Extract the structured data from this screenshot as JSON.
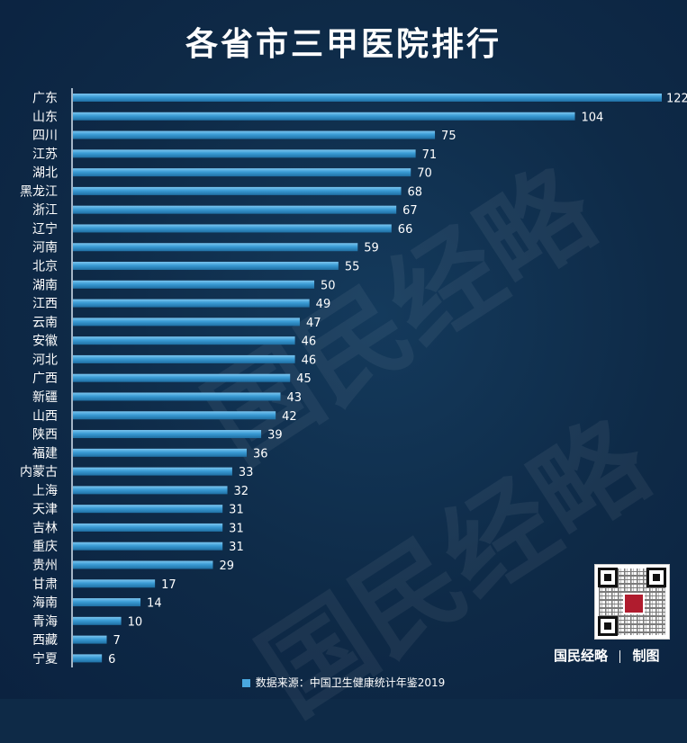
{
  "title": "各省市三甲医院排行",
  "footer": {
    "source": "数据来源：中国卫生健康统计年鉴2019"
  },
  "brand": {
    "name": "国民经略",
    "suffix": "制图",
    "watermark": "国民经略"
  },
  "colors": {
    "background": "#0e2a47",
    "bar": "#3a9bd4",
    "bar_highlight": "#7cc6f0",
    "text": "#ffffff"
  },
  "chart_data": {
    "type": "bar",
    "orientation": "horizontal",
    "categories": [
      "广东",
      "山东",
      "四川",
      "江苏",
      "湖北",
      "黑龙江",
      "浙江",
      "辽宁",
      "河南",
      "北京",
      "湖南",
      "江西",
      "云南",
      "安徽",
      "河北",
      "广西",
      "新疆",
      "山西",
      "陕西",
      "福建",
      "内蒙古",
      "上海",
      "天津",
      "吉林",
      "重庆",
      "贵州",
      "甘肃",
      "海南",
      "青海",
      "西藏",
      "宁夏"
    ],
    "values": [
      122,
      104,
      75,
      71,
      70,
      68,
      67,
      66,
      59,
      55,
      50,
      49,
      47,
      46,
      46,
      45,
      43,
      42,
      39,
      36,
      33,
      32,
      31,
      31,
      31,
      29,
      17,
      14,
      10,
      7,
      6
    ],
    "xlim": [
      0,
      122
    ],
    "grid": false,
    "legend": "none",
    "data_labels": true
  }
}
